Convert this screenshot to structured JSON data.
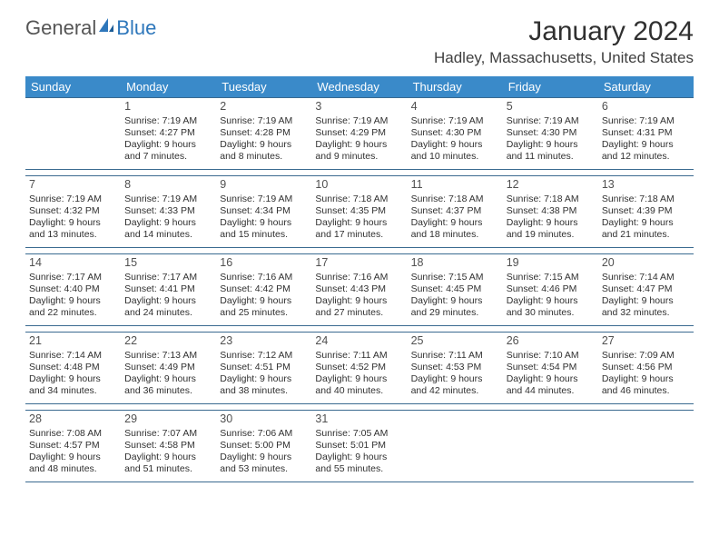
{
  "logo": {
    "general": "General",
    "blue": "Blue"
  },
  "title": "January 2024",
  "location": "Hadley, Massachusetts, United States",
  "colors": {
    "header_bg": "#3a8ac9",
    "header_text": "#ffffff",
    "rule": "#3a6a90",
    "body_text": "#303030",
    "daynum_text": "#505050",
    "brand_blue": "#2e77bb",
    "brand_gray": "#555555"
  },
  "weekdays": [
    "Sunday",
    "Monday",
    "Tuesday",
    "Wednesday",
    "Thursday",
    "Friday",
    "Saturday"
  ],
  "weeks": [
    [
      null,
      {
        "d": "1",
        "sr": "7:19 AM",
        "ss": "4:27 PM",
        "dl": "9 hours and 7 minutes."
      },
      {
        "d": "2",
        "sr": "7:19 AM",
        "ss": "4:28 PM",
        "dl": "9 hours and 8 minutes."
      },
      {
        "d": "3",
        "sr": "7:19 AM",
        "ss": "4:29 PM",
        "dl": "9 hours and 9 minutes."
      },
      {
        "d": "4",
        "sr": "7:19 AM",
        "ss": "4:30 PM",
        "dl": "9 hours and 10 minutes."
      },
      {
        "d": "5",
        "sr": "7:19 AM",
        "ss": "4:30 PM",
        "dl": "9 hours and 11 minutes."
      },
      {
        "d": "6",
        "sr": "7:19 AM",
        "ss": "4:31 PM",
        "dl": "9 hours and 12 minutes."
      }
    ],
    [
      {
        "d": "7",
        "sr": "7:19 AM",
        "ss": "4:32 PM",
        "dl": "9 hours and 13 minutes."
      },
      {
        "d": "8",
        "sr": "7:19 AM",
        "ss": "4:33 PM",
        "dl": "9 hours and 14 minutes."
      },
      {
        "d": "9",
        "sr": "7:19 AM",
        "ss": "4:34 PM",
        "dl": "9 hours and 15 minutes."
      },
      {
        "d": "10",
        "sr": "7:18 AM",
        "ss": "4:35 PM",
        "dl": "9 hours and 17 minutes."
      },
      {
        "d": "11",
        "sr": "7:18 AM",
        "ss": "4:37 PM",
        "dl": "9 hours and 18 minutes."
      },
      {
        "d": "12",
        "sr": "7:18 AM",
        "ss": "4:38 PM",
        "dl": "9 hours and 19 minutes."
      },
      {
        "d": "13",
        "sr": "7:18 AM",
        "ss": "4:39 PM",
        "dl": "9 hours and 21 minutes."
      }
    ],
    [
      {
        "d": "14",
        "sr": "7:17 AM",
        "ss": "4:40 PM",
        "dl": "9 hours and 22 minutes."
      },
      {
        "d": "15",
        "sr": "7:17 AM",
        "ss": "4:41 PM",
        "dl": "9 hours and 24 minutes."
      },
      {
        "d": "16",
        "sr": "7:16 AM",
        "ss": "4:42 PM",
        "dl": "9 hours and 25 minutes."
      },
      {
        "d": "17",
        "sr": "7:16 AM",
        "ss": "4:43 PM",
        "dl": "9 hours and 27 minutes."
      },
      {
        "d": "18",
        "sr": "7:15 AM",
        "ss": "4:45 PM",
        "dl": "9 hours and 29 minutes."
      },
      {
        "d": "19",
        "sr": "7:15 AM",
        "ss": "4:46 PM",
        "dl": "9 hours and 30 minutes."
      },
      {
        "d": "20",
        "sr": "7:14 AM",
        "ss": "4:47 PM",
        "dl": "9 hours and 32 minutes."
      }
    ],
    [
      {
        "d": "21",
        "sr": "7:14 AM",
        "ss": "4:48 PM",
        "dl": "9 hours and 34 minutes."
      },
      {
        "d": "22",
        "sr": "7:13 AM",
        "ss": "4:49 PM",
        "dl": "9 hours and 36 minutes."
      },
      {
        "d": "23",
        "sr": "7:12 AM",
        "ss": "4:51 PM",
        "dl": "9 hours and 38 minutes."
      },
      {
        "d": "24",
        "sr": "7:11 AM",
        "ss": "4:52 PM",
        "dl": "9 hours and 40 minutes."
      },
      {
        "d": "25",
        "sr": "7:11 AM",
        "ss": "4:53 PM",
        "dl": "9 hours and 42 minutes."
      },
      {
        "d": "26",
        "sr": "7:10 AM",
        "ss": "4:54 PM",
        "dl": "9 hours and 44 minutes."
      },
      {
        "d": "27",
        "sr": "7:09 AM",
        "ss": "4:56 PM",
        "dl": "9 hours and 46 minutes."
      }
    ],
    [
      {
        "d": "28",
        "sr": "7:08 AM",
        "ss": "4:57 PM",
        "dl": "9 hours and 48 minutes."
      },
      {
        "d": "29",
        "sr": "7:07 AM",
        "ss": "4:58 PM",
        "dl": "9 hours and 51 minutes."
      },
      {
        "d": "30",
        "sr": "7:06 AM",
        "ss": "5:00 PM",
        "dl": "9 hours and 53 minutes."
      },
      {
        "d": "31",
        "sr": "7:05 AM",
        "ss": "5:01 PM",
        "dl": "9 hours and 55 minutes."
      },
      null,
      null,
      null
    ]
  ],
  "labels": {
    "sunrise": "Sunrise:",
    "sunset": "Sunset:",
    "daylight": "Daylight:"
  }
}
